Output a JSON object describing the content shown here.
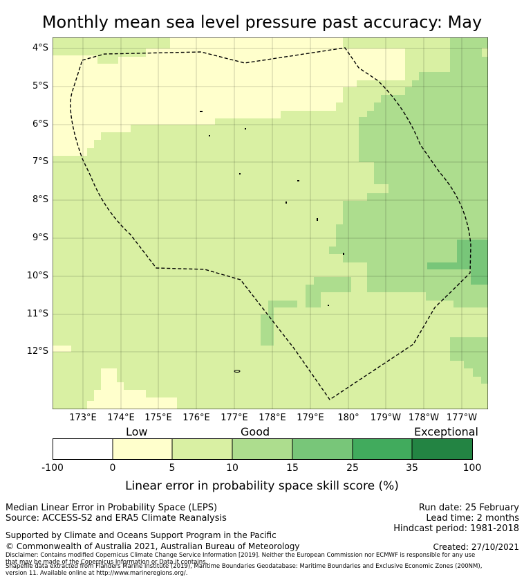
{
  "title": "Monthly mean sea level pressure past accuracy: May",
  "colors": {
    "very_low": "#ffffff",
    "low": "#ffffcc",
    "good_low": "#d9f0a3",
    "good_high": "#addd8e",
    "high": "#78c679",
    "very_high": "#41ab5d",
    "exceptional": "#238443",
    "boundary": "#000000"
  },
  "map": {
    "lat_labels": [
      "4°S",
      "5°S",
      "6°S",
      "7°S",
      "8°S",
      "9°S",
      "10°S",
      "11°S",
      "12°S"
    ],
    "lon_labels": [
      "173°E",
      "174°E",
      "175°E",
      "176°E",
      "177°E",
      "178°E",
      "179°E",
      "180°",
      "179°W",
      "178°W",
      "177°W"
    ]
  },
  "colorbar": {
    "categories": [
      "Low",
      "Good",
      "Exceptional"
    ],
    "ticks": [
      "-100",
      "0",
      "5",
      "10",
      "15",
      "25",
      "35",
      "100"
    ],
    "label": "Linear error in probability space skill score (%)"
  },
  "info": {
    "line1": "Median Linear Error in Probability Space (LEPS)",
    "line2": "Source: ACCESS-S2 and ERA5 Climate Reanalysis",
    "run_date": "Run date: 25 February",
    "lead_time": "Lead time: 2 months",
    "hindcast": "Hindcast period: 1981-2018",
    "supported": "Supported by Climate and Oceans Support Program in the Pacific",
    "copyright": "© Commonwealth of Australia 2021, Australian Bureau of Meteorology",
    "created": "Created: 27/10/2021",
    "disclaimer1": "Disclaimer: Contains modified Copernicus Climate Change Service Information [2019]. Neither the European Commission nor ECMWF is responsible for any use",
    "disclaimer2": "that may be made of the Copernicus Information or Data it contains.",
    "shapefile1": "Shapefile data extracted from Flanders Marine Institute (2019), Maritime Boundaries Geodatabase: Maritime Boundaries and Exclusive Economic Zones (200NM),",
    "shapefile2": "version 11. Available online at http://www.marineregions.org/."
  }
}
